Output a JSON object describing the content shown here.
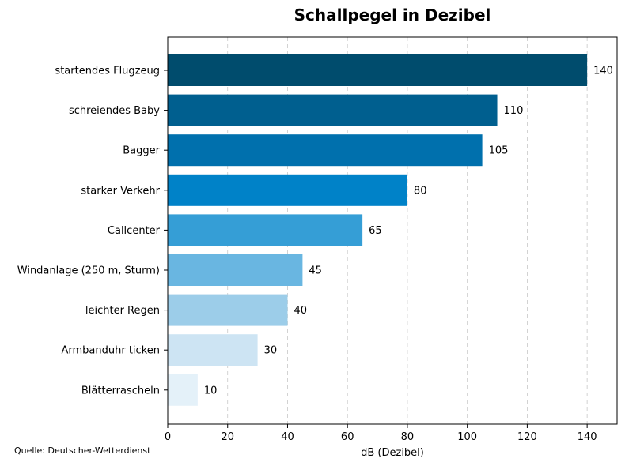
{
  "chart_data": {
    "type": "bar",
    "orientation": "horizontal",
    "title": "Schallpegel in Dezibel",
    "xlabel": "dB (Dezibel)",
    "ylabel": "",
    "xlim": [
      0,
      150
    ],
    "xticks": [
      0,
      20,
      40,
      60,
      80,
      100,
      120,
      140
    ],
    "grid": "vertical-dashed",
    "categories": [
      "startendes Flugzeug",
      "schreiendes Baby",
      "Bagger",
      "starker Verkehr",
      "Callcenter",
      "Windanlage (250 m, Sturm)",
      "leichter Regen",
      "Armbanduhr ticken",
      "Blätterrascheln"
    ],
    "values": [
      140,
      110,
      105,
      80,
      65,
      45,
      40,
      30,
      10
    ],
    "colors": [
      "#004c6d",
      "#005f8f",
      "#0070ad",
      "#0082c8",
      "#359ed6",
      "#69b6e1",
      "#9ccde9",
      "#cde4f3",
      "#e4f1f9"
    ],
    "source": "Quelle: Deutscher-Wetterdienst"
  }
}
